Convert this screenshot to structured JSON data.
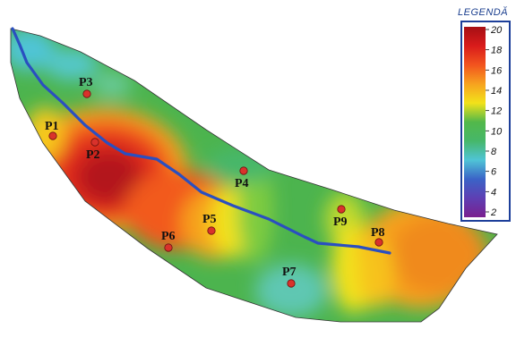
{
  "legend": {
    "title": "LEGENDĂ",
    "ticks": [
      "20",
      "18",
      "16",
      "14",
      "12",
      "10",
      "8",
      "6",
      "4",
      "2"
    ],
    "colors": [
      "#7a1f8f",
      "#3b63c7",
      "#4fc4d6",
      "#46b76a",
      "#7fcc3f",
      "#f2e21a",
      "#f7a21f",
      "#f2541e",
      "#d91b1b",
      "#a60f14"
    ]
  },
  "points": [
    {
      "id": "P1",
      "label": "P1"
    },
    {
      "id": "P2",
      "label": "P2"
    },
    {
      "id": "P3",
      "label": "P3"
    },
    {
      "id": "P4",
      "label": "P4"
    },
    {
      "id": "P5",
      "label": "P5"
    },
    {
      "id": "P6",
      "label": "P6"
    },
    {
      "id": "P7",
      "label": "P7"
    },
    {
      "id": "P8",
      "label": "P8"
    },
    {
      "id": "P9",
      "label": "P9"
    }
  ],
  "colors": {
    "river": "#2a4fc0",
    "point": "#d9322b",
    "legend_border": "#1d3f9a"
  }
}
